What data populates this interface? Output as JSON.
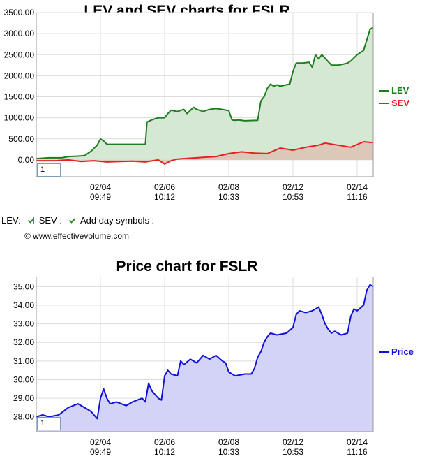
{
  "colors": {
    "lev": "#1e7d1e",
    "lev_fill": "#d4e8d4",
    "sev": "#e62020",
    "sev_fill": "#dcc7b9",
    "price": "#1010d8",
    "price_fill": "#d3d3f8",
    "grid": "#dcdcdc",
    "axis": "#999999"
  },
  "controls": {
    "lev_label": "LEV:",
    "sev_label": "SEV :",
    "day_symbols_label": "Add day symbols :",
    "lev_checked": true,
    "sev_checked": true,
    "day_symbols_checked": false
  },
  "copyright": "© www.effectivevolume.com",
  "chart_data": [
    {
      "type": "area",
      "title": "LEV and SEV charts for FSLR",
      "xlabel": "",
      "ylabel": "",
      "ylim": [
        -400,
        3500
      ],
      "yticks": [
        "0.00",
        "500.00",
        "1000.00",
        "1500.00",
        "2000.00",
        "2500.00",
        "3000.00",
        "3500.00"
      ],
      "xticks": [
        {
          "date": "02/04",
          "time": "09:49",
          "x": 0.2
        },
        {
          "date": "02/06",
          "time": "10:12",
          "x": 0.4
        },
        {
          "date": "02/08",
          "time": "10:33",
          "x": 0.6
        },
        {
          "date": "02/12",
          "time": "10:53",
          "x": 0.8
        },
        {
          "date": "02/14",
          "time": "11:16",
          "x": 1.0
        }
      ],
      "xlim": [
        0,
        1.05
      ],
      "grid": true,
      "legend_position": "right",
      "zoom_value": "1",
      "series": [
        {
          "name": "LEV",
          "x": [
            0.0,
            0.04,
            0.08,
            0.1,
            0.13,
            0.15,
            0.17,
            0.19,
            0.2,
            0.21,
            0.22,
            0.24,
            0.3,
            0.34,
            0.345,
            0.36,
            0.38,
            0.4,
            0.41,
            0.42,
            0.44,
            0.46,
            0.47,
            0.49,
            0.5,
            0.52,
            0.54,
            0.56,
            0.58,
            0.6,
            0.61,
            0.62,
            0.63,
            0.65,
            0.69,
            0.7,
            0.71,
            0.72,
            0.73,
            0.74,
            0.75,
            0.76,
            0.79,
            0.8,
            0.81,
            0.83,
            0.85,
            0.86,
            0.87,
            0.88,
            0.89,
            0.92,
            0.94,
            0.96,
            0.97,
            0.98,
            1.0,
            1.02,
            1.04,
            1.05
          ],
          "y": [
            30,
            50,
            50,
            80,
            90,
            100,
            200,
            350,
            500,
            450,
            370,
            370,
            370,
            370,
            900,
            950,
            1000,
            1000,
            1100,
            1180,
            1150,
            1200,
            1100,
            1250,
            1200,
            1150,
            1200,
            1220,
            1200,
            1170,
            950,
            940,
            950,
            930,
            940,
            1400,
            1500,
            1700,
            1800,
            1750,
            1780,
            1750,
            1800,
            2100,
            2300,
            2300,
            2320,
            2200,
            2500,
            2400,
            2500,
            2250,
            2250,
            2280,
            2300,
            2350,
            2500,
            2600,
            3100,
            3150
          ]
        },
        {
          "name": "SEV",
          "x": [
            0.0,
            0.06,
            0.1,
            0.14,
            0.18,
            0.22,
            0.26,
            0.3,
            0.34,
            0.38,
            0.4,
            0.42,
            0.44,
            0.48,
            0.52,
            0.56,
            0.6,
            0.64,
            0.68,
            0.72,
            0.76,
            0.8,
            0.84,
            0.88,
            0.9,
            0.94,
            0.98,
            1.02,
            1.05
          ],
          "y": [
            -20,
            -20,
            0,
            -40,
            -20,
            -50,
            -40,
            -30,
            -50,
            0,
            -100,
            -20,
            20,
            40,
            60,
            80,
            150,
            190,
            160,
            150,
            280,
            230,
            300,
            350,
            400,
            350,
            300,
            430,
            410
          ]
        }
      ]
    },
    {
      "type": "area",
      "title": "Price chart for FSLR",
      "xlabel": "",
      "ylabel": "",
      "ylim": [
        27.2,
        35.5
      ],
      "yticks": [
        "28.00",
        "29.00",
        "30.00",
        "31.00",
        "32.00",
        "33.00",
        "34.00",
        "35.00"
      ],
      "xticks": [
        {
          "date": "02/04",
          "time": "09:49",
          "x": 0.2
        },
        {
          "date": "02/06",
          "time": "10:12",
          "x": 0.4
        },
        {
          "date": "02/08",
          "time": "10:33",
          "x": 0.6
        },
        {
          "date": "02/12",
          "time": "10:53",
          "x": 0.8
        },
        {
          "date": "02/14",
          "time": "11:16",
          "x": 1.0
        }
      ],
      "xlim": [
        0,
        1.05
      ],
      "grid": true,
      "legend_position": "right",
      "zoom_value": "1",
      "series": [
        {
          "name": "Price",
          "x": [
            0.0,
            0.02,
            0.04,
            0.07,
            0.1,
            0.13,
            0.15,
            0.17,
            0.19,
            0.2,
            0.21,
            0.22,
            0.23,
            0.25,
            0.28,
            0.3,
            0.33,
            0.34,
            0.35,
            0.36,
            0.38,
            0.39,
            0.4,
            0.41,
            0.42,
            0.44,
            0.45,
            0.46,
            0.48,
            0.5,
            0.52,
            0.54,
            0.56,
            0.58,
            0.59,
            0.6,
            0.62,
            0.65,
            0.67,
            0.68,
            0.69,
            0.7,
            0.71,
            0.72,
            0.73,
            0.75,
            0.78,
            0.8,
            0.81,
            0.82,
            0.84,
            0.86,
            0.88,
            0.89,
            0.9,
            0.91,
            0.92,
            0.93,
            0.95,
            0.97,
            0.98,
            0.99,
            1.0,
            1.02,
            1.03,
            1.04,
            1.05
          ],
          "y": [
            28.0,
            28.1,
            28.0,
            28.1,
            28.5,
            28.7,
            28.5,
            28.3,
            27.9,
            29.0,
            29.5,
            29.0,
            28.7,
            28.8,
            28.6,
            28.8,
            29.0,
            28.8,
            29.8,
            29.4,
            29.0,
            28.9,
            30.2,
            30.5,
            30.3,
            30.2,
            31.0,
            30.8,
            31.1,
            30.9,
            31.3,
            31.1,
            31.3,
            31.0,
            30.9,
            30.4,
            30.2,
            30.3,
            30.3,
            30.6,
            31.2,
            31.5,
            32.0,
            32.3,
            32.5,
            32.4,
            32.5,
            32.8,
            33.5,
            33.7,
            33.6,
            33.7,
            33.9,
            33.5,
            33.0,
            32.7,
            32.5,
            32.6,
            32.4,
            32.5,
            33.4,
            33.8,
            33.7,
            34.0,
            34.8,
            35.1,
            35.0
          ]
        }
      ]
    }
  ]
}
